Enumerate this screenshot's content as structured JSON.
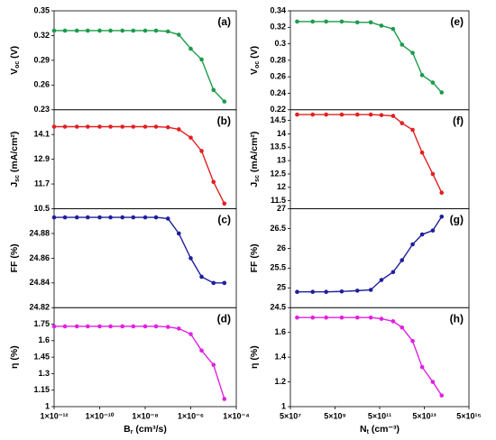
{
  "chart_data": [
    {
      "type": "line",
      "annotation": "(a)",
      "log_x": true,
      "y_label": [
        "V",
        "oc",
        " (V)"
      ],
      "color": "#1a9c4a",
      "x": [
        1e-12,
        3e-12,
        1e-11,
        3e-11,
        1e-10,
        3e-10,
        1e-09,
        3e-09,
        1e-08,
        3e-08,
        1e-07,
        3e-07,
        1e-06,
        3e-06,
        1e-05,
        3e-05
      ],
      "values": [
        0.326,
        0.326,
        0.326,
        0.326,
        0.326,
        0.326,
        0.326,
        0.326,
        0.326,
        0.326,
        0.325,
        0.321,
        0.304,
        0.291,
        0.254,
        0.24
      ],
      "xlim": [
        1e-12,
        0.0001
      ],
      "ylim": [
        0.23,
        0.35
      ],
      "yticks": [
        0.23,
        0.26,
        0.29,
        0.32,
        0.35
      ]
    },
    {
      "type": "line",
      "annotation": "(b)",
      "log_x": true,
      "y_label": [
        "J",
        "sc",
        " (mA/cm²)"
      ],
      "color": "#e02020",
      "x": [
        1e-12,
        3e-12,
        1e-11,
        3e-11,
        1e-10,
        3e-10,
        1e-09,
        3e-09,
        1e-08,
        3e-08,
        1e-07,
        3e-07,
        1e-06,
        3e-06,
        1e-05,
        3e-05
      ],
      "values": [
        14.48,
        14.48,
        14.48,
        14.48,
        14.48,
        14.48,
        14.48,
        14.48,
        14.48,
        14.48,
        14.45,
        14.35,
        13.95,
        13.3,
        11.8,
        10.75
      ],
      "xlim": [
        1e-12,
        0.0001
      ],
      "ylim": [
        10.5,
        15.3
      ],
      "yticks": [
        10.5,
        11.7,
        12.9,
        14.1
      ]
    },
    {
      "type": "line",
      "annotation": "(c)",
      "log_x": true,
      "y_label": [
        "FF (%)"
      ],
      "color": "#1f1f9c",
      "x": [
        1e-12,
        3e-12,
        1e-11,
        3e-11,
        1e-10,
        3e-10,
        1e-09,
        3e-09,
        1e-08,
        3e-08,
        1e-07,
        3e-07,
        1e-06,
        3e-06,
        1e-05,
        3e-05
      ],
      "values": [
        24.893,
        24.893,
        24.893,
        24.893,
        24.893,
        24.893,
        24.893,
        24.893,
        24.893,
        24.893,
        24.892,
        24.88,
        24.86,
        24.845,
        24.84,
        24.84
      ],
      "xlim": [
        1e-12,
        0.0001
      ],
      "ylim": [
        24.82,
        24.9
      ],
      "yticks": [
        24.82,
        24.84,
        24.86,
        24.88
      ]
    },
    {
      "type": "line",
      "annotation": "(d)",
      "log_x": true,
      "y_label": [
        "η (%)"
      ],
      "x_label": [
        "B",
        "r",
        " (cm³/s)"
      ],
      "color": "#e020e0",
      "x": [
        1e-12,
        3e-12,
        1e-11,
        3e-11,
        1e-10,
        3e-10,
        1e-09,
        3e-09,
        1e-08,
        3e-08,
        1e-07,
        3e-07,
        1e-06,
        3e-06,
        1e-05,
        3e-05
      ],
      "values": [
        1.73,
        1.73,
        1.73,
        1.73,
        1.73,
        1.73,
        1.73,
        1.73,
        1.73,
        1.73,
        1.725,
        1.71,
        1.66,
        1.51,
        1.38,
        1.07
      ],
      "xlim": [
        1e-12,
        0.0001
      ],
      "ylim": [
        1,
        1.9
      ],
      "yticks": [
        1,
        1.15,
        1.3,
        1.45,
        1.6,
        1.75
      ],
      "xticks": [
        {
          "value": 1e-12,
          "label": "1×10⁻¹²"
        },
        {
          "value": 1e-10,
          "label": "1×10⁻¹⁰"
        },
        {
          "value": 1e-08,
          "label": "1×10⁻⁸"
        },
        {
          "value": 1e-06,
          "label": "1×10⁻⁶"
        },
        {
          "value": 0.0001,
          "label": "1×10⁻⁴"
        }
      ]
    },
    {
      "type": "line",
      "annotation": "(e)",
      "log_x": true,
      "y_label": [
        "V",
        "oc",
        " (V)"
      ],
      "color": "#1a9c4a",
      "x": [
        100000000.0,
        500000000.0,
        2000000000.0,
        10000000000.0,
        50000000000.0,
        200000000000.0,
        600000000000.0,
        2000000000000.0,
        5000000000000.0,
        15000000000000.0,
        40000000000000.0,
        120000000000000.0,
        300000000000000.0
      ],
      "values": [
        0.327,
        0.327,
        0.327,
        0.327,
        0.326,
        0.326,
        0.322,
        0.318,
        0.299,
        0.289,
        0.262,
        0.253,
        0.241
      ],
      "xlim": [
        50000000.0,
        5000000000000000.0
      ],
      "ylim": [
        0.22,
        0.34
      ],
      "yticks": [
        0.22,
        0.24,
        0.26,
        0.28,
        0.3,
        0.32,
        0.34
      ]
    },
    {
      "type": "line",
      "annotation": "(f)",
      "log_x": true,
      "y_label": [
        "J",
        "sc",
        " (mA/cm²)"
      ],
      "color": "#e02020",
      "x": [
        100000000.0,
        500000000.0,
        2000000000.0,
        10000000000.0,
        50000000000.0,
        200000000000.0,
        600000000000.0,
        2000000000000.0,
        5000000000000.0,
        15000000000000.0,
        40000000000000.0,
        120000000000000.0,
        300000000000000.0
      ],
      "values": [
        14.72,
        14.72,
        14.72,
        14.72,
        14.72,
        14.72,
        14.7,
        14.67,
        14.4,
        14.15,
        13.3,
        12.5,
        11.8
      ],
      "xlim": [
        50000000.0,
        5000000000000000.0
      ],
      "ylim": [
        11.2,
        14.9
      ],
      "yticks": [
        11.5,
        12,
        12.5,
        13,
        13.5,
        14,
        14.5
      ]
    },
    {
      "type": "line",
      "annotation": "(g)",
      "log_x": true,
      "y_label": [
        "FF (%)"
      ],
      "color": "#1f1f9c",
      "x": [
        100000000.0,
        500000000.0,
        2000000000.0,
        10000000000.0,
        50000000000.0,
        200000000000.0,
        600000000000.0,
        2000000000000.0,
        5000000000000.0,
        15000000000000.0,
        40000000000000.0,
        120000000000000.0,
        300000000000000.0
      ],
      "values": [
        24.9,
        24.9,
        24.9,
        24.91,
        24.93,
        24.95,
        25.2,
        25.4,
        25.7,
        26.1,
        26.35,
        26.45,
        26.8
      ],
      "xlim": [
        50000000.0,
        5000000000000000.0
      ],
      "ylim": [
        24.5,
        27
      ],
      "yticks": [
        24.5,
        25,
        25.5,
        26,
        26.5,
        27
      ]
    },
    {
      "type": "line",
      "annotation": "(h)",
      "log_x": true,
      "y_label": [
        "η (%)"
      ],
      "x_label": [
        "N",
        "t",
        " (cm⁻³)"
      ],
      "color": "#e020e0",
      "x": [
        100000000.0,
        500000000.0,
        2000000000.0,
        10000000000.0,
        50000000000.0,
        200000000000.0,
        600000000000.0,
        2000000000000.0,
        5000000000000.0,
        15000000000000.0,
        40000000000000.0,
        120000000000000.0,
        300000000000000.0
      ],
      "values": [
        1.72,
        1.72,
        1.72,
        1.72,
        1.72,
        1.72,
        1.71,
        1.69,
        1.64,
        1.53,
        1.32,
        1.2,
        1.09
      ],
      "xlim": [
        50000000.0,
        5000000000000000.0
      ],
      "ylim": [
        1,
        1.8
      ],
      "yticks": [
        1,
        1.2,
        1.4,
        1.6
      ],
      "xticks": [
        {
          "value": 50000000.0,
          "label": "5×10⁷"
        },
        {
          "value": 5000000000.0,
          "label": "5×10⁹"
        },
        {
          "value": 500000000000.0,
          "label": "5×10¹¹"
        },
        {
          "value": 50000000000000.0,
          "label": "5×10¹³"
        },
        {
          "value": 5000000000000000.0,
          "label": "5×10¹⁵"
        }
      ]
    }
  ]
}
